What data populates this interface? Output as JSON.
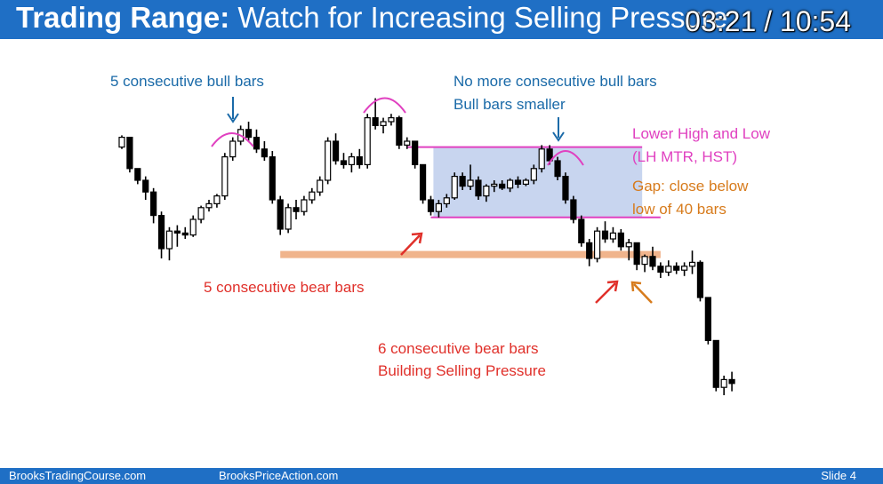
{
  "header": {
    "title_bold": "Trading Range:",
    "title_rest": " Watch for Increasing Selling Pressure",
    "video_time": "03:21 / 10:54"
  },
  "footer": {
    "left": "BrooksTradingCourse.com",
    "center": "BrooksPriceAction.com",
    "slide_label": "Slide 4"
  },
  "colors": {
    "blue_text": "#1a6aa8",
    "magenta": "#e040c0",
    "red": "#e0302a",
    "orange": "#d77b1c",
    "trading_range_box": "#b6c7ea",
    "support_line": "#f0b48c",
    "header_bg": "#1f6fc5"
  },
  "annotations": {
    "bull5": "5 consecutive bull bars",
    "no_more_1": "No more consecutive bull bars",
    "no_more_2": "Bull bars smaller",
    "lower_high_1": "Lower High and Low",
    "lower_high_2": "(LH MTR, HST)",
    "gap_1": "Gap: close below",
    "gap_2": "low of 40 bars",
    "bear5": "5 consecutive bear bars",
    "bear6_1": "6 consecutive bear bars",
    "bear6_2": "Building Selling Pressure"
  },
  "chart_data": {
    "type": "candlestick",
    "title": "Trading Range: Watch for Increasing Selling Pressure",
    "xlabel": "",
    "ylabel": "",
    "grid": false,
    "price_scale": "relative units (no axis printed)",
    "ohlc": [
      [
        57,
        63,
        56,
        62
      ],
      [
        62,
        62,
        44,
        46
      ],
      [
        46,
        46,
        38,
        40
      ],
      [
        40,
        42,
        30,
        34
      ],
      [
        34,
        36,
        18,
        22
      ],
      [
        22,
        24,
        0,
        5
      ],
      [
        5,
        16,
        -1,
        14
      ],
      [
        14,
        17,
        6,
        13
      ],
      [
        13,
        16,
        10,
        12
      ],
      [
        12,
        22,
        11,
        20
      ],
      [
        20,
        27,
        18,
        26
      ],
      [
        26,
        30,
        24,
        28
      ],
      [
        28,
        33,
        26,
        32
      ],
      [
        32,
        54,
        30,
        52
      ],
      [
        52,
        62,
        50,
        60
      ],
      [
        60,
        68,
        58,
        66
      ],
      [
        66,
        70,
        60,
        62
      ],
      [
        62,
        66,
        54,
        56
      ],
      [
        56,
        60,
        50,
        52
      ],
      [
        52,
        55,
        28,
        30
      ],
      [
        30,
        32,
        12,
        15
      ],
      [
        15,
        28,
        13,
        26
      ],
      [
        26,
        30,
        20,
        24
      ],
      [
        24,
        32,
        22,
        30
      ],
      [
        30,
        36,
        28,
        34
      ],
      [
        34,
        42,
        32,
        40
      ],
      [
        40,
        62,
        38,
        60
      ],
      [
        60,
        64,
        48,
        50
      ],
      [
        50,
        54,
        46,
        48
      ],
      [
        48,
        54,
        44,
        52
      ],
      [
        52,
        56,
        46,
        48
      ],
      [
        48,
        74,
        46,
        72
      ],
      [
        72,
        82,
        66,
        68
      ],
      [
        68,
        72,
        64,
        70
      ],
      [
        70,
        74,
        68,
        72
      ],
      [
        72,
        73,
        56,
        58
      ],
      [
        58,
        62,
        56,
        60
      ],
      [
        60,
        60,
        46,
        48
      ],
      [
        48,
        48,
        28,
        30
      ],
      [
        30,
        32,
        22,
        24
      ],
      [
        24,
        30,
        21,
        28
      ],
      [
        28,
        33,
        26,
        31
      ],
      [
        31,
        44,
        30,
        42
      ],
      [
        42,
        44,
        35,
        37
      ],
      [
        37,
        48,
        35,
        40
      ],
      [
        40,
        42,
        30,
        32
      ],
      [
        32,
        38,
        29,
        37
      ],
      [
        37,
        40,
        34,
        38
      ],
      [
        38,
        40,
        35,
        36
      ],
      [
        36,
        41,
        34,
        40
      ],
      [
        40,
        42,
        36,
        38
      ],
      [
        38,
        41,
        37,
        40
      ],
      [
        40,
        48,
        38,
        46
      ],
      [
        46,
        58,
        44,
        56
      ],
      [
        56,
        58,
        48,
        50
      ],
      [
        50,
        52,
        40,
        42
      ],
      [
        42,
        44,
        28,
        30
      ],
      [
        30,
        32,
        18,
        20
      ],
      [
        20,
        22,
        6,
        8
      ],
      [
        8,
        10,
        -4,
        0
      ],
      [
        0,
        16,
        -2,
        14
      ],
      [
        14,
        19,
        8,
        10
      ],
      [
        10,
        16,
        8,
        13
      ],
      [
        13,
        15,
        4,
        6
      ],
      [
        6,
        10,
        -1,
        8
      ],
      [
        8,
        8,
        -6,
        -3
      ],
      [
        -3,
        2,
        -7,
        1
      ],
      [
        1,
        6,
        -6,
        -4
      ],
      [
        -4,
        -2,
        -10,
        -7
      ],
      [
        -7,
        -1,
        -9,
        -4
      ],
      [
        -4,
        -2,
        -8,
        -6
      ],
      [
        -6,
        -2,
        -9,
        -4
      ],
      [
        -4,
        4,
        -8,
        -2
      ],
      [
        -2,
        -1,
        -22,
        -20
      ],
      [
        -20,
        -21,
        -44,
        -42
      ],
      [
        -42,
        -42,
        -68,
        -66
      ],
      [
        -66,
        -60,
        -70,
        -62
      ],
      [
        -62,
        -58,
        -68,
        -64
      ]
    ],
    "trading_range_box": {
      "start_bar": 40,
      "end_bar": 65,
      "top": 57,
      "bottom": 21
    },
    "support_level": {
      "start_bar": 20,
      "end_bar": 68,
      "value": 2
    }
  }
}
